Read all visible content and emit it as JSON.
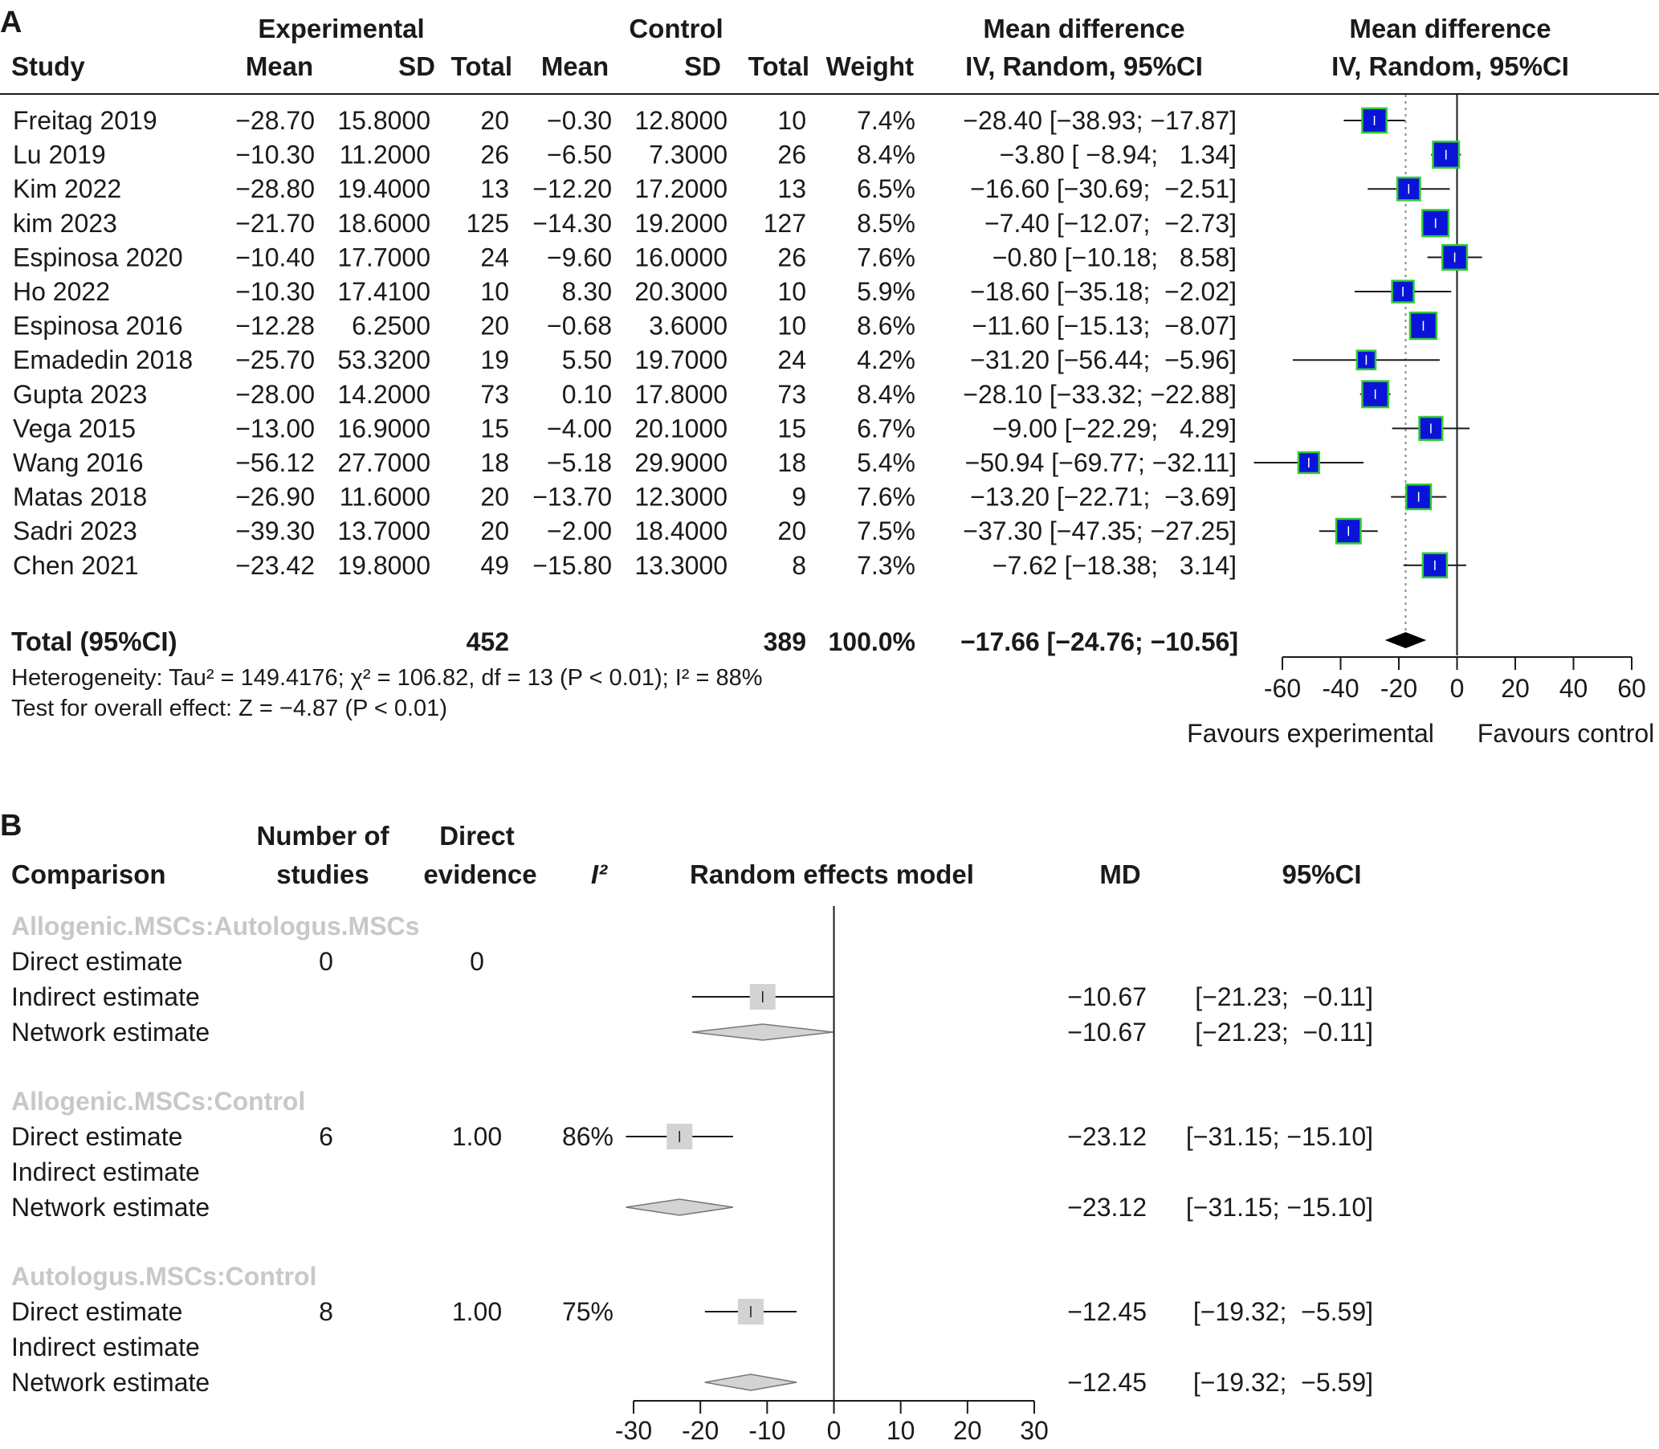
{
  "colors": {
    "box": "#0a14d8",
    "box_border": "#33cc33",
    "diamond": "#000000",
    "grey_box": "#d3d3d3",
    "ref_line": "#888888"
  },
  "panelA": {
    "label": "A",
    "group_exp": "Experimental",
    "group_ctrl": "Control",
    "col_study": "Study",
    "col_mean": "Mean",
    "col_sd": "SD",
    "col_total": "Total",
    "col_weight": "Weight",
    "md_head1": "Mean difference",
    "md_head2": "IV, Random, 95%CI",
    "plot_head1": "Mean difference",
    "plot_head2": "IV, Random, 95%CI",
    "total_label": "Total (95%CI)",
    "total_exp": "452",
    "total_ctrl": "389",
    "total_weight": "100.0%",
    "total_md": "−17.66 [−24.76; −10.56]",
    "heterogeneity": "Heterogeneity: Tau² = 149.4176;  χ² = 106.82, df = 13 (P < 0.01); I² = 88%",
    "overall_effect": "Test for overall effect: Z = −4.87 (P < 0.01)",
    "axis_ticks": [
      "-60",
      "-40",
      "-20",
      "0",
      "20",
      "40",
      "60"
    ],
    "favours_left": "Favours experimental",
    "favours_right": "Favours control",
    "rows": [
      {
        "study": "Freitag 2019",
        "e_mean": "−28.70",
        "e_sd": "15.8000",
        "e_total": "20",
        "c_mean": "−0.30",
        "c_sd": "12.8000",
        "c_total": "10",
        "weight": "7.4%",
        "md": "−28.40 [−38.93; −17.87]"
      },
      {
        "study": "Lu 2019",
        "e_mean": "−10.30",
        "e_sd": "11.2000",
        "e_total": "26",
        "c_mean": "−6.50",
        "c_sd": "7.3000",
        "c_total": "26",
        "weight": "8.4%",
        "md": "−3.80 [ −8.94;   1.34]"
      },
      {
        "study": "Kim 2022",
        "e_mean": "−28.80",
        "e_sd": "19.4000",
        "e_total": "13",
        "c_mean": "−12.20",
        "c_sd": "17.2000",
        "c_total": "13",
        "weight": "6.5%",
        "md": "−16.60 [−30.69;  −2.51]"
      },
      {
        "study": "kim 2023",
        "e_mean": "−21.70",
        "e_sd": "18.6000",
        "e_total": "125",
        "c_mean": "−14.30",
        "c_sd": "19.2000",
        "c_total": "127",
        "weight": "8.5%",
        "md": "−7.40 [−12.07;  −2.73]"
      },
      {
        "study": "Espinosa 2020",
        "e_mean": "−10.40",
        "e_sd": "17.7000",
        "e_total": "24",
        "c_mean": "−9.60",
        "c_sd": "16.0000",
        "c_total": "26",
        "weight": "7.6%",
        "md": "−0.80 [−10.18;   8.58]"
      },
      {
        "study": "Ho 2022",
        "e_mean": "−10.30",
        "e_sd": "17.4100",
        "e_total": "10",
        "c_mean": "8.30",
        "c_sd": "20.3000",
        "c_total": "10",
        "weight": "5.9%",
        "md": "−18.60 [−35.18;  −2.02]"
      },
      {
        "study": "Espinosa 2016",
        "e_mean": "−12.28",
        "e_sd": "6.2500",
        "e_total": "20",
        "c_mean": "−0.68",
        "c_sd": "3.6000",
        "c_total": "10",
        "weight": "8.6%",
        "md": "−11.60 [−15.13;  −8.07]"
      },
      {
        "study": "Emadedin 2018",
        "e_mean": "−25.70",
        "e_sd": "53.3200",
        "e_total": "19",
        "c_mean": "5.50",
        "c_sd": "19.7000",
        "c_total": "24",
        "weight": "4.2%",
        "md": "−31.20 [−56.44;  −5.96]"
      },
      {
        "study": "Gupta 2023",
        "e_mean": "−28.00",
        "e_sd": "14.2000",
        "e_total": "73",
        "c_mean": "0.10",
        "c_sd": "17.8000",
        "c_total": "73",
        "weight": "8.4%",
        "md": "−28.10 [−33.32; −22.88]"
      },
      {
        "study": "Vega 2015",
        "e_mean": "−13.00",
        "e_sd": "16.9000",
        "e_total": "15",
        "c_mean": "−4.00",
        "c_sd": "20.1000",
        "c_total": "15",
        "weight": "6.7%",
        "md": "−9.00 [−22.29;   4.29]"
      },
      {
        "study": "Wang 2016",
        "e_mean": "−56.12",
        "e_sd": "27.7000",
        "e_total": "18",
        "c_mean": "−5.18",
        "c_sd": "29.9000",
        "c_total": "18",
        "weight": "5.4%",
        "md": "−50.94 [−69.77; −32.11]"
      },
      {
        "study": "Matas 2018",
        "e_mean": "−26.90",
        "e_sd": "11.6000",
        "e_total": "20",
        "c_mean": "−13.70",
        "c_sd": "12.3000",
        "c_total": "9",
        "weight": "7.6%",
        "md": "−13.20 [−22.71;  −3.69]"
      },
      {
        "study": "Sadri 2023",
        "e_mean": "−39.30",
        "e_sd": "13.7000",
        "e_total": "20",
        "c_mean": "−2.00",
        "c_sd": "18.4000",
        "c_total": "20",
        "weight": "7.5%",
        "md": "−37.30 [−47.35; −27.25]"
      },
      {
        "study": "Chen 2021",
        "e_mean": "−23.42",
        "e_sd": "19.8000",
        "e_total": "49",
        "c_mean": "−15.80",
        "c_sd": "13.3000",
        "c_total": "8",
        "weight": "7.3%",
        "md": "−7.62 [−18.38;   3.14]"
      }
    ]
  },
  "panelB": {
    "label": "B",
    "col_comparison": "Comparison",
    "col_nstudies1": "Number of",
    "col_nstudies2": "studies",
    "col_direct1": "Direct",
    "col_direct2": "evidence",
    "col_i2": "I²",
    "col_model": "Random effects model",
    "col_md": "MD",
    "col_ci": "95%CI",
    "axis_ticks": [
      "-30",
      "-20",
      "-10",
      "0",
      "10",
      "20",
      "30"
    ],
    "groups": [
      {
        "title": "Allogenic.MSCs:Autologus.MSCs",
        "rows": [
          {
            "label": "Direct estimate",
            "n": "0",
            "direct": "0",
            "i2": "",
            "md": "",
            "ci": ""
          },
          {
            "label": "Indirect estimate",
            "n": "",
            "direct": "",
            "i2": "",
            "md": "−10.67",
            "ci": "[−21.23;  −0.11]"
          },
          {
            "label": "Network estimate",
            "n": "",
            "direct": "",
            "i2": "",
            "md": "−10.67",
            "ci": "[−21.23;  −0.11]"
          }
        ]
      },
      {
        "title": "Allogenic.MSCs:Control",
        "rows": [
          {
            "label": "Direct estimate",
            "n": "6",
            "direct": "1.00",
            "i2": "86%",
            "md": "−23.12",
            "ci": "[−31.15; −15.10]"
          },
          {
            "label": "Indirect estimate",
            "n": "",
            "direct": "",
            "i2": "",
            "md": "",
            "ci": ""
          },
          {
            "label": "Network estimate",
            "n": "",
            "direct": "",
            "i2": "",
            "md": "−23.12",
            "ci": "[−31.15; −15.10]"
          }
        ]
      },
      {
        "title": "Autologus.MSCs:Control",
        "rows": [
          {
            "label": "Direct estimate",
            "n": "8",
            "direct": "1.00",
            "i2": "75%",
            "md": "−12.45",
            "ci": "[−19.32;  −5.59]"
          },
          {
            "label": "Indirect estimate",
            "n": "",
            "direct": "",
            "i2": "",
            "md": "",
            "ci": ""
          },
          {
            "label": "Network estimate",
            "n": "",
            "direct": "",
            "i2": "",
            "md": "−12.45",
            "ci": "[−19.32;  −5.59]"
          }
        ]
      }
    ]
  },
  "chart_data": [
    {
      "type": "forest",
      "scale": "linear",
      "xlim": [
        -60,
        60
      ],
      "xticks": [
        -60,
        -40,
        -20,
        0,
        20,
        40,
        60
      ],
      "xlabel_left": "Favours experimental",
      "xlabel_right": "Favours control",
      "studies": [
        {
          "name": "Freitag 2019",
          "md": -28.4,
          "lo": -38.93,
          "hi": -17.87,
          "weight": 7.4
        },
        {
          "name": "Lu 2019",
          "md": -3.8,
          "lo": -8.94,
          "hi": 1.34,
          "weight": 8.4
        },
        {
          "name": "Kim 2022",
          "md": -16.6,
          "lo": -30.69,
          "hi": -2.51,
          "weight": 6.5
        },
        {
          "name": "kim 2023",
          "md": -7.4,
          "lo": -12.07,
          "hi": -2.73,
          "weight": 8.5
        },
        {
          "name": "Espinosa 2020",
          "md": -0.8,
          "lo": -10.18,
          "hi": 8.58,
          "weight": 7.6
        },
        {
          "name": "Ho 2022",
          "md": -18.6,
          "lo": -35.18,
          "hi": -2.02,
          "weight": 5.9
        },
        {
          "name": "Espinosa 2016",
          "md": -11.6,
          "lo": -15.13,
          "hi": -8.07,
          "weight": 8.6
        },
        {
          "name": "Emadedin 2018",
          "md": -31.2,
          "lo": -56.44,
          "hi": -5.96,
          "weight": 4.2
        },
        {
          "name": "Gupta 2023",
          "md": -28.1,
          "lo": -33.32,
          "hi": -22.88,
          "weight": 8.4
        },
        {
          "name": "Vega 2015",
          "md": -9.0,
          "lo": -22.29,
          "hi": 4.29,
          "weight": 6.7
        },
        {
          "name": "Wang 2016",
          "md": -50.94,
          "lo": -69.77,
          "hi": -32.11,
          "weight": 5.4
        },
        {
          "name": "Matas 2018",
          "md": -13.2,
          "lo": -22.71,
          "hi": -3.69,
          "weight": 7.6
        },
        {
          "name": "Sadri 2023",
          "md": -37.3,
          "lo": -47.35,
          "hi": -27.25,
          "weight": 7.5
        },
        {
          "name": "Chen 2021",
          "md": -7.62,
          "lo": -18.38,
          "hi": 3.14,
          "weight": 7.3
        }
      ],
      "pooled": {
        "md": -17.66,
        "lo": -24.76,
        "hi": -10.56
      }
    },
    {
      "type": "forest",
      "scale": "linear",
      "xlim": [
        -30,
        30
      ],
      "xticks": [
        -30,
        -20,
        -10,
        0,
        10,
        20,
        30
      ],
      "estimates": [
        {
          "comparison": "Allogenic.MSCs:Autologus.MSCs",
          "kind": "Indirect estimate",
          "md": -10.67,
          "lo": -21.23,
          "hi": -0.11
        },
        {
          "comparison": "Allogenic.MSCs:Autologus.MSCs",
          "kind": "Network estimate",
          "md": -10.67,
          "lo": -21.23,
          "hi": -0.11
        },
        {
          "comparison": "Allogenic.MSCs:Control",
          "kind": "Direct estimate",
          "md": -23.12,
          "lo": -31.15,
          "hi": -15.1
        },
        {
          "comparison": "Allogenic.MSCs:Control",
          "kind": "Network estimate",
          "md": -23.12,
          "lo": -31.15,
          "hi": -15.1
        },
        {
          "comparison": "Autologus.MSCs:Control",
          "kind": "Direct estimate",
          "md": -12.45,
          "lo": -19.32,
          "hi": -5.59
        },
        {
          "comparison": "Autologus.MSCs:Control",
          "kind": "Network estimate",
          "md": -12.45,
          "lo": -19.32,
          "hi": -5.59
        }
      ]
    }
  ]
}
